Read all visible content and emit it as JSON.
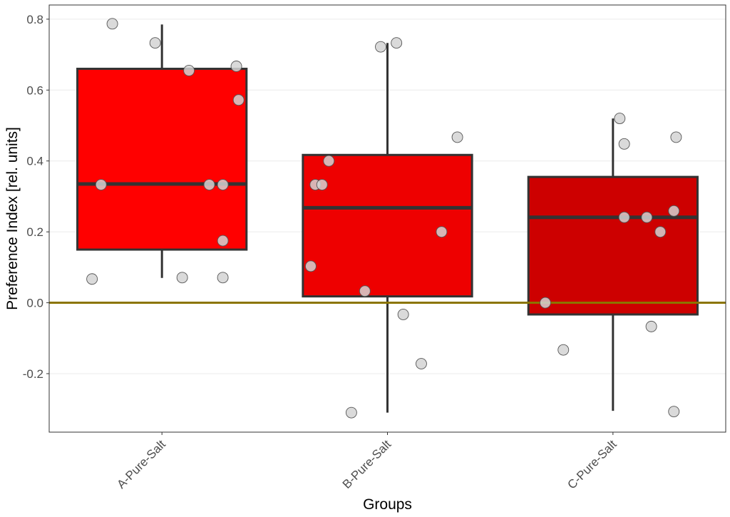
{
  "chart_data": {
    "type": "box",
    "title": "",
    "xlabel": "Groups",
    "ylabel": "Preference Index [rel. units]",
    "ylim": [
      -0.365,
      0.84
    ],
    "yticks": [
      -0.2,
      0.0,
      0.2,
      0.4,
      0.6,
      0.8
    ],
    "ytick_labels": [
      "-0.2",
      "0.0",
      "0.2",
      "0.4",
      "0.6",
      "0.8"
    ],
    "grid": true,
    "reference_line": {
      "y": 0.0,
      "color": "#8b7500"
    },
    "point_color": "#d3d3d3",
    "box_outline_color": "#333333",
    "groups": [
      {
        "name": "A-Pure-Salt",
        "fill": "#ff0000",
        "whisker_low": 0.07,
        "q1": 0.15,
        "median": 0.335,
        "q3": 0.66,
        "whisker_high": 0.785,
        "points": [
          {
            "x": -0.22,
            "y": 0.787
          },
          {
            "x": -0.03,
            "y": 0.733
          },
          {
            "x": 0.12,
            "y": 0.655
          },
          {
            "x": 0.33,
            "y": 0.667
          },
          {
            "x": 0.34,
            "y": 0.572
          },
          {
            "x": -0.27,
            "y": 0.333
          },
          {
            "x": 0.21,
            "y": 0.333
          },
          {
            "x": 0.27,
            "y": 0.333
          },
          {
            "x": 0.27,
            "y": 0.175
          },
          {
            "x": -0.31,
            "y": 0.067
          },
          {
            "x": 0.09,
            "y": 0.071
          },
          {
            "x": 0.27,
            "y": 0.071
          }
        ]
      },
      {
        "name": "B-Pure-Salt",
        "fill": "#ee0000",
        "whisker_low": -0.31,
        "q1": 0.018,
        "median": 0.268,
        "q3": 0.417,
        "whisker_high": 0.733,
        "points": [
          {
            "x": -0.03,
            "y": 0.722
          },
          {
            "x": 0.04,
            "y": 0.733
          },
          {
            "x": 0.31,
            "y": 0.467
          },
          {
            "x": -0.26,
            "y": 0.4
          },
          {
            "x": -0.32,
            "y": 0.333
          },
          {
            "x": -0.29,
            "y": 0.333
          },
          {
            "x": 0.24,
            "y": 0.2
          },
          {
            "x": -0.34,
            "y": 0.103
          },
          {
            "x": -0.1,
            "y": 0.033
          },
          {
            "x": 0.07,
            "y": -0.033
          },
          {
            "x": 0.15,
            "y": -0.172
          },
          {
            "x": -0.16,
            "y": -0.31
          }
        ]
      },
      {
        "name": "C-Pure-Salt",
        "fill": "#cd0000",
        "whisker_low": -0.305,
        "q1": -0.033,
        "median": 0.241,
        "q3": 0.355,
        "whisker_high": 0.52,
        "points": [
          {
            "x": 0.03,
            "y": 0.52
          },
          {
            "x": 0.05,
            "y": 0.448
          },
          {
            "x": 0.28,
            "y": 0.467
          },
          {
            "x": 0.27,
            "y": 0.259
          },
          {
            "x": 0.05,
            "y": 0.241
          },
          {
            "x": 0.15,
            "y": 0.241
          },
          {
            "x": 0.21,
            "y": 0.2
          },
          {
            "x": -0.3,
            "y": 0.0
          },
          {
            "x": 0.17,
            "y": -0.067
          },
          {
            "x": -0.22,
            "y": -0.133
          },
          {
            "x": 0.27,
            "y": -0.307
          }
        ]
      }
    ]
  }
}
